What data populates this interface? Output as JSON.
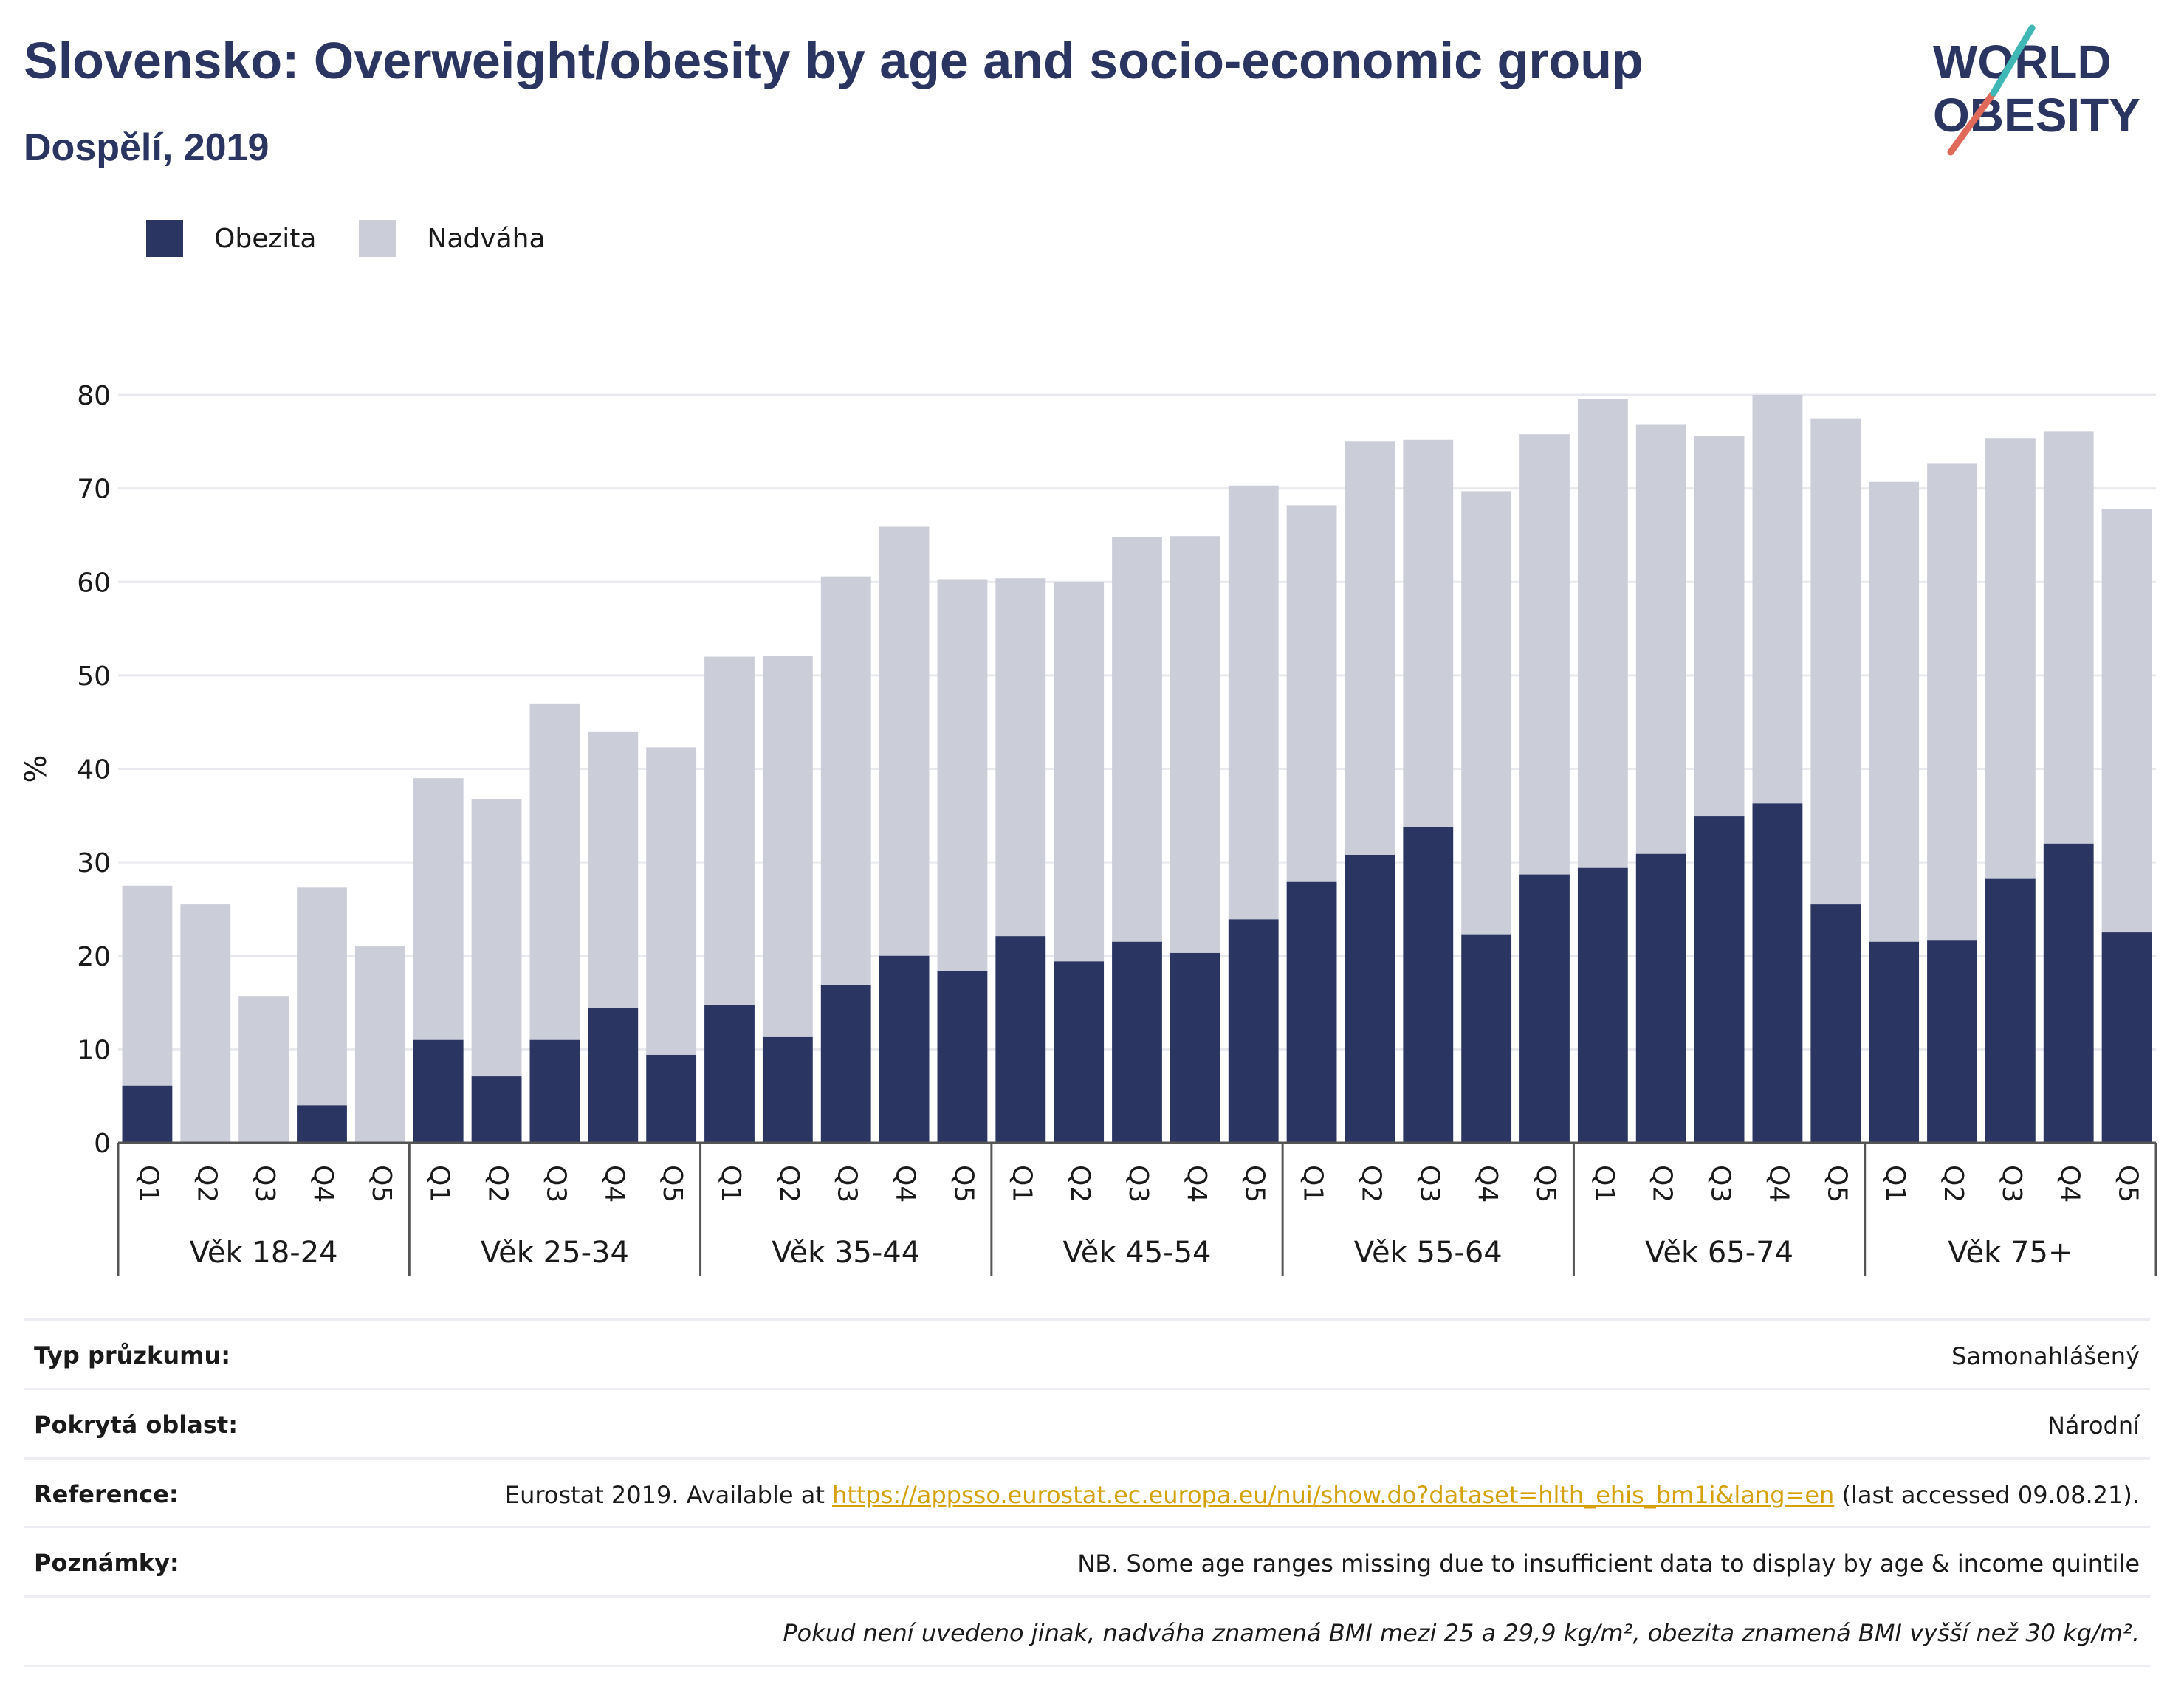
{
  "header": {
    "title": "Slovensko: Overweight/obesity by age and socio-economic group",
    "subtitle": "Dospělí, 2019"
  },
  "logo": {
    "line1": "WORLD",
    "line2": "OBESITY"
  },
  "legend": [
    {
      "label": "Obezita",
      "color": "#2b3562"
    },
    {
      "label": "Nadváha",
      "color": "#cbcdd9"
    }
  ],
  "chart_data": {
    "type": "bar",
    "stacked": true,
    "title": "",
    "ylabel": "%",
    "ylim": [
      0,
      80
    ],
    "yticks": [
      0,
      10,
      20,
      30,
      40,
      50,
      60,
      70,
      80
    ],
    "grid": true,
    "legend_position": "top-left",
    "groups": [
      {
        "label": "Věk 18-24",
        "categories": [
          "Q1",
          "Q2",
          "Q3",
          "Q4",
          "Q5"
        ],
        "obezita": [
          6.1,
          0,
          0,
          4.0,
          0
        ],
        "total": [
          27.5,
          25.5,
          15.7,
          27.3,
          21.0
        ]
      },
      {
        "label": "Věk 25-34",
        "categories": [
          "Q1",
          "Q2",
          "Q3",
          "Q4",
          "Q5"
        ],
        "obezita": [
          11.0,
          7.1,
          11.0,
          14.4,
          9.4
        ],
        "total": [
          39.0,
          36.8,
          47.0,
          44.0,
          42.3
        ]
      },
      {
        "label": "Věk 35-44",
        "categories": [
          "Q1",
          "Q2",
          "Q3",
          "Q4",
          "Q5"
        ],
        "obezita": [
          14.7,
          11.3,
          16.9,
          20.0,
          18.4
        ],
        "total": [
          52.0,
          52.1,
          60.6,
          65.9,
          60.3
        ]
      },
      {
        "label": "Věk 45-54",
        "categories": [
          "Q1",
          "Q2",
          "Q3",
          "Q4",
          "Q5"
        ],
        "obezita": [
          22.1,
          19.4,
          21.5,
          20.3,
          23.9
        ],
        "total": [
          60.4,
          60.0,
          64.8,
          64.9,
          70.3
        ]
      },
      {
        "label": "Věk 55-64",
        "categories": [
          "Q1",
          "Q2",
          "Q3",
          "Q4",
          "Q5"
        ],
        "obezita": [
          27.9,
          30.8,
          33.8,
          22.3,
          28.7
        ],
        "total": [
          68.2,
          75.0,
          75.2,
          69.7,
          75.8
        ]
      },
      {
        "label": "Věk 65-74",
        "categories": [
          "Q1",
          "Q2",
          "Q3",
          "Q4",
          "Q5"
        ],
        "obezita": [
          29.4,
          30.9,
          34.9,
          36.3,
          25.5
        ],
        "total": [
          79.6,
          76.8,
          75.6,
          80.0,
          77.5
        ]
      },
      {
        "label": "Věk 75+",
        "categories": [
          "Q1",
          "Q2",
          "Q3",
          "Q4",
          "Q5"
        ],
        "obezita": [
          21.5,
          21.7,
          28.3,
          32.0,
          22.5
        ],
        "total": [
          70.7,
          72.7,
          75.4,
          76.1,
          67.8
        ]
      }
    ],
    "colors": {
      "obezita": "#2b3562",
      "nadvaha": "#cbcdd9"
    }
  },
  "info": {
    "survey_type_label": "Typ průzkumu:",
    "survey_type_value": "Samonahlášený",
    "coverage_label": "Pokrytá oblast:",
    "coverage_value": "Národní",
    "reference_label": "Reference:",
    "reference_prefix": "Eurostat 2019. Available at ",
    "reference_link": "https://appsso.eurostat.ec.europa.eu/nui/show.do?dataset=hlth_ehis_bm1i&lang=en",
    "reference_suffix": " (last accessed 09.08.21).",
    "notes_label": "Poznámky:",
    "notes_value": "NB. Some age ranges missing due to insufficient data to display by age & income quintile",
    "footnote": "Pokud není uvedeno jinak, nadváha znamená BMI mezi 25 a 29,9 kg/m², obezita znamená BMI vyšší než 30 kg/m²."
  }
}
